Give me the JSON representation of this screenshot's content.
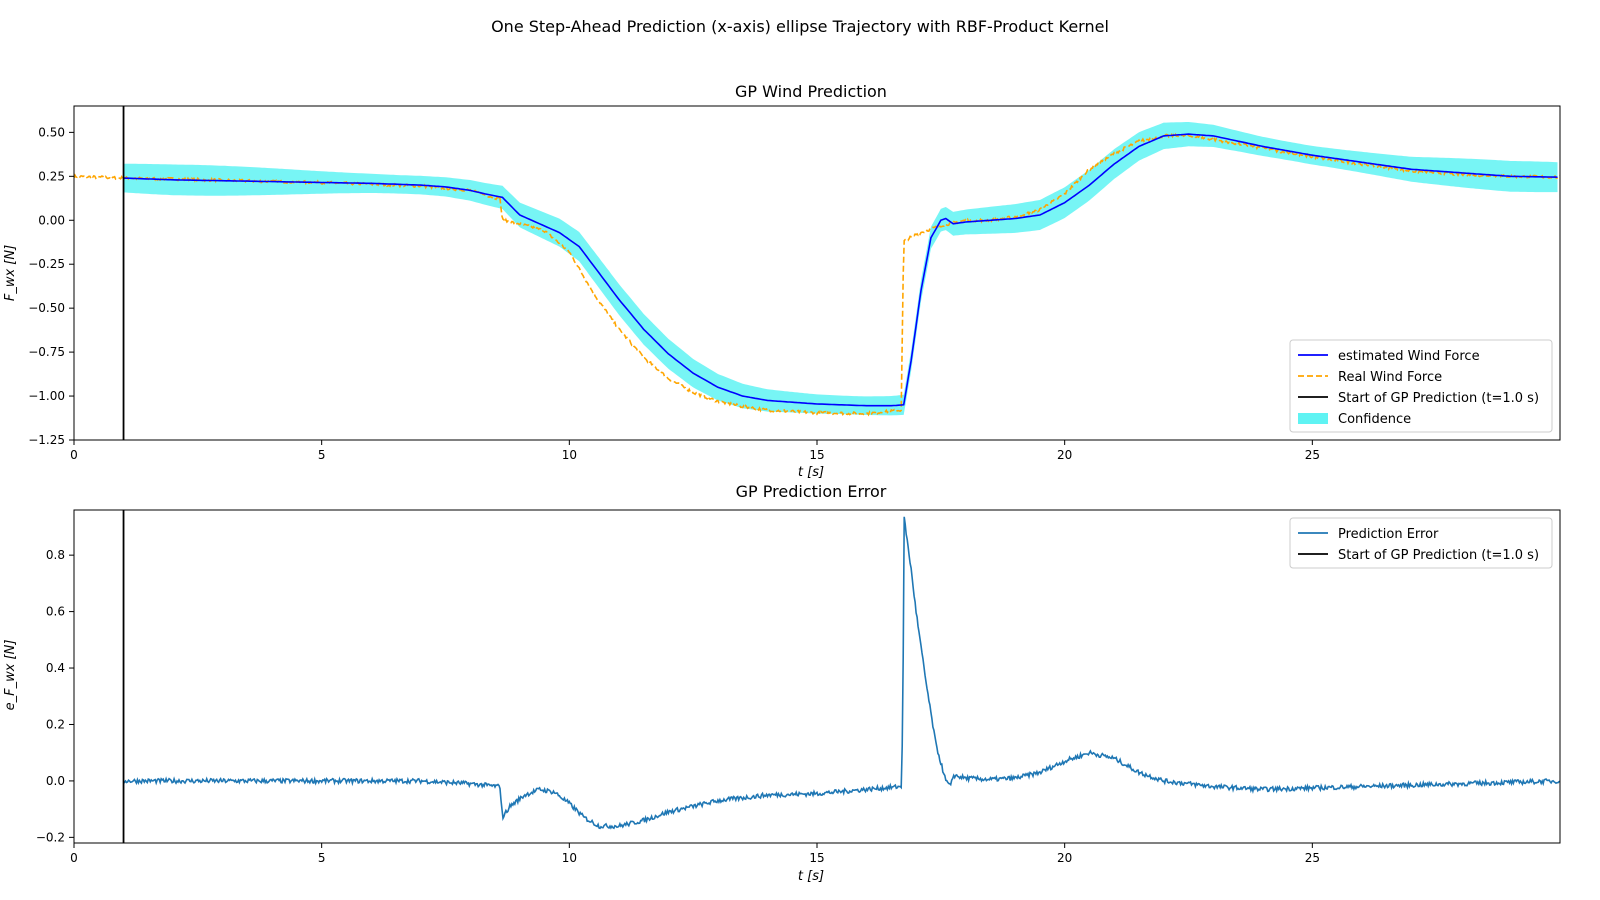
{
  "figure": {
    "suptitle": "One Step-Ahead Prediction (x-axis) ellipse Trajectory with RBF-Product Kernel"
  },
  "chart_data": [
    {
      "type": "line",
      "title": "GP Wind Prediction",
      "xlabel": "t [s]",
      "ylabel": "F_wx [N]",
      "xlim": [
        0,
        30
      ],
      "ylim": [
        -1.25,
        0.65
      ],
      "xticks": [
        0,
        5,
        10,
        15,
        20,
        25
      ],
      "xtick_labels": [
        "0",
        "5",
        "10",
        "15",
        "20",
        "25"
      ],
      "yticks": [
        0.5,
        0.25,
        0.0,
        -0.25,
        -0.5,
        -0.75,
        -1.0,
        -1.25
      ],
      "ytick_labels": [
        "0.50",
        "0.25",
        "0.00",
        "−0.25",
        "−0.50",
        "−0.75",
        "−1.00",
        "−1.25"
      ],
      "grid": false,
      "legend_position": "lower right",
      "vline": {
        "x": 1.0,
        "label": "Start of GP Prediction (t=1.0 s)",
        "color": "#000000"
      },
      "confidence_halfwidth": 0.07,
      "series": [
        {
          "name": "estimated Wind Force",
          "color": "#0000ff",
          "style": "solid",
          "x": [
            1.0,
            2,
            3,
            4,
            5,
            6,
            7,
            7.5,
            8,
            8.3,
            8.65,
            9.0,
            9.4,
            9.8,
            10.2,
            10.6,
            11.0,
            11.5,
            12.0,
            12.5,
            13.0,
            13.5,
            14.0,
            14.5,
            15.0,
            15.5,
            16.0,
            16.5,
            16.75,
            16.9,
            17.1,
            17.3,
            17.5,
            17.6,
            17.75,
            18.0,
            18.5,
            19.0,
            19.5,
            20.0,
            20.5,
            21.0,
            21.5,
            22.0,
            22.5,
            23.0,
            23.5,
            24.0,
            25.0,
            26.0,
            27.0,
            28.0,
            29.0,
            30.0
          ],
          "values": [
            0.24,
            0.23,
            0.225,
            0.22,
            0.215,
            0.21,
            0.2,
            0.19,
            0.17,
            0.15,
            0.13,
            0.03,
            -0.02,
            -0.07,
            -0.15,
            -0.3,
            -0.45,
            -0.62,
            -0.76,
            -0.87,
            -0.95,
            -1.0,
            -1.025,
            -1.035,
            -1.045,
            -1.05,
            -1.055,
            -1.055,
            -1.05,
            -0.8,
            -0.4,
            -0.1,
            0.0,
            0.01,
            -0.02,
            -0.01,
            0.0,
            0.01,
            0.03,
            0.1,
            0.2,
            0.32,
            0.42,
            0.48,
            0.49,
            0.48,
            0.45,
            0.42,
            0.37,
            0.33,
            0.29,
            0.27,
            0.25,
            0.245
          ]
        },
        {
          "name": "Real Wind Force",
          "color": "#ffa500",
          "style": "dashed",
          "x": [
            0,
            1,
            2,
            3,
            4,
            5,
            6,
            7,
            8,
            8.6,
            8.65,
            9.0,
            9.5,
            10.0,
            10.5,
            11.0,
            11.5,
            12.0,
            12.5,
            13.0,
            13.5,
            14.0,
            15.0,
            16.0,
            16.7,
            16.75,
            17.0,
            17.5,
            18.0,
            18.5,
            19.0,
            19.5,
            20.0,
            20.5,
            21.0,
            21.5,
            22.0,
            22.5,
            23.0,
            24.0,
            25.0,
            26.0,
            27.0,
            28.0,
            29.0,
            30.0
          ],
          "values": [
            0.25,
            0.24,
            0.235,
            0.228,
            0.22,
            0.215,
            0.205,
            0.195,
            0.17,
            0.12,
            0.0,
            -0.02,
            -0.06,
            -0.18,
            -0.42,
            -0.62,
            -0.78,
            -0.9,
            -0.98,
            -1.03,
            -1.06,
            -1.08,
            -1.095,
            -1.1,
            -1.08,
            -0.12,
            -0.08,
            -0.03,
            0.0,
            0.0,
            0.02,
            0.06,
            0.15,
            0.29,
            0.38,
            0.45,
            0.48,
            0.48,
            0.46,
            0.41,
            0.36,
            0.32,
            0.28,
            0.26,
            0.25,
            0.245
          ]
        }
      ],
      "legend": [
        "estimated Wind Force",
        "Real Wind Force",
        "Start of GP Prediction (t=1.0 s)",
        "Confidence"
      ],
      "confidence_color": "#5ff3f3"
    },
    {
      "type": "line",
      "title": "GP Prediction Error",
      "xlabel": "t [s]",
      "ylabel": "e_F_wx [N]",
      "xlim": [
        0,
        30
      ],
      "ylim": [
        -0.22,
        0.96
      ],
      "xticks": [
        0,
        5,
        10,
        15,
        20,
        25
      ],
      "xtick_labels": [
        "0",
        "5",
        "10",
        "15",
        "20",
        "25"
      ],
      "yticks": [
        0.8,
        0.6,
        0.4,
        0.2,
        0.0,
        -0.2
      ],
      "ytick_labels": [
        "0.8",
        "0.6",
        "0.4",
        "0.2",
        "0.0",
        "−0.2"
      ],
      "grid": false,
      "legend_position": "upper right",
      "vline": {
        "x": 1.0,
        "label": "Start of GP Prediction (t=1.0 s)",
        "color": "#000000"
      },
      "series": [
        {
          "name": "Prediction Error",
          "color": "#1f77b4",
          "style": "solid",
          "x": [
            1.0,
            3,
            5,
            7,
            8.0,
            8.6,
            8.65,
            8.8,
            9.1,
            9.4,
            9.7,
            10.0,
            10.3,
            10.6,
            11.0,
            11.5,
            12.0,
            12.5,
            13.0,
            14.0,
            15.0,
            16.0,
            16.7,
            16.73,
            16.76,
            16.9,
            17.0,
            17.2,
            17.4,
            17.6,
            17.7,
            17.75,
            18.0,
            18.5,
            19.0,
            19.5,
            20.0,
            20.5,
            21.0,
            21.5,
            22.0,
            23.0,
            24.0,
            25.0,
            26.0,
            27.0,
            28.0,
            29.0,
            30.0
          ],
          "values": [
            0.0,
            0.0,
            0.0,
            0.0,
            -0.01,
            -0.02,
            -0.13,
            -0.09,
            -0.05,
            -0.03,
            -0.04,
            -0.08,
            -0.13,
            -0.16,
            -0.16,
            -0.14,
            -0.11,
            -0.09,
            -0.07,
            -0.05,
            -0.045,
            -0.03,
            -0.02,
            0.2,
            0.93,
            0.75,
            0.6,
            0.35,
            0.13,
            0.0,
            -0.02,
            0.02,
            0.01,
            0.005,
            0.01,
            0.03,
            0.07,
            0.1,
            0.08,
            0.03,
            0.0,
            -0.02,
            -0.03,
            -0.025,
            -0.02,
            -0.015,
            -0.01,
            -0.005,
            0.0
          ]
        }
      ],
      "legend": [
        "Prediction Error",
        "Start of GP Prediction (t=1.0 s)"
      ]
    }
  ]
}
